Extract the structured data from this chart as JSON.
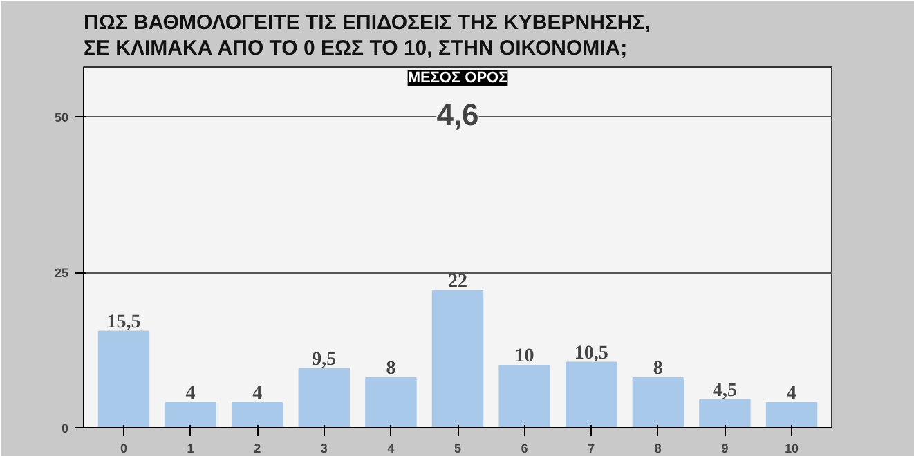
{
  "chart_data": {
    "type": "bar",
    "title": "ΠΩΣ ΒΑΘΜΟΛΟΓΕΙΤΕ ΤΙΣ ΕΠΙΔΟΣΕΙΣ ΤΗΣ ΚΥΒΕΡΝΗΣΗΣ,\nΣΕ ΚΛΙΜΑΚΑ ΑΠΟ ΤΟ 0 ΕΩΣ ΤΟ 10, ΣΤΗΝ ΟΙΚΟΝΟΜΙΑ;",
    "categories": [
      "0",
      "1",
      "2",
      "3",
      "4",
      "5",
      "6",
      "7",
      "8",
      "9",
      "10"
    ],
    "values": [
      15.5,
      4,
      4,
      9.5,
      8,
      22,
      10,
      10.5,
      8,
      4.5,
      4
    ],
    "value_labels": [
      "15,5",
      "4",
      "4",
      "9,5",
      "8",
      "22",
      "10",
      "10,5",
      "8",
      "4,5",
      "4"
    ],
    "color": "#a9c9ea",
    "ylim": [
      0,
      58
    ],
    "yticks": [
      0,
      25,
      50
    ],
    "grid": "y",
    "annotations": [
      "ΜΕΣΟΣ ΟΡΟΣ",
      "4,6"
    ]
  }
}
